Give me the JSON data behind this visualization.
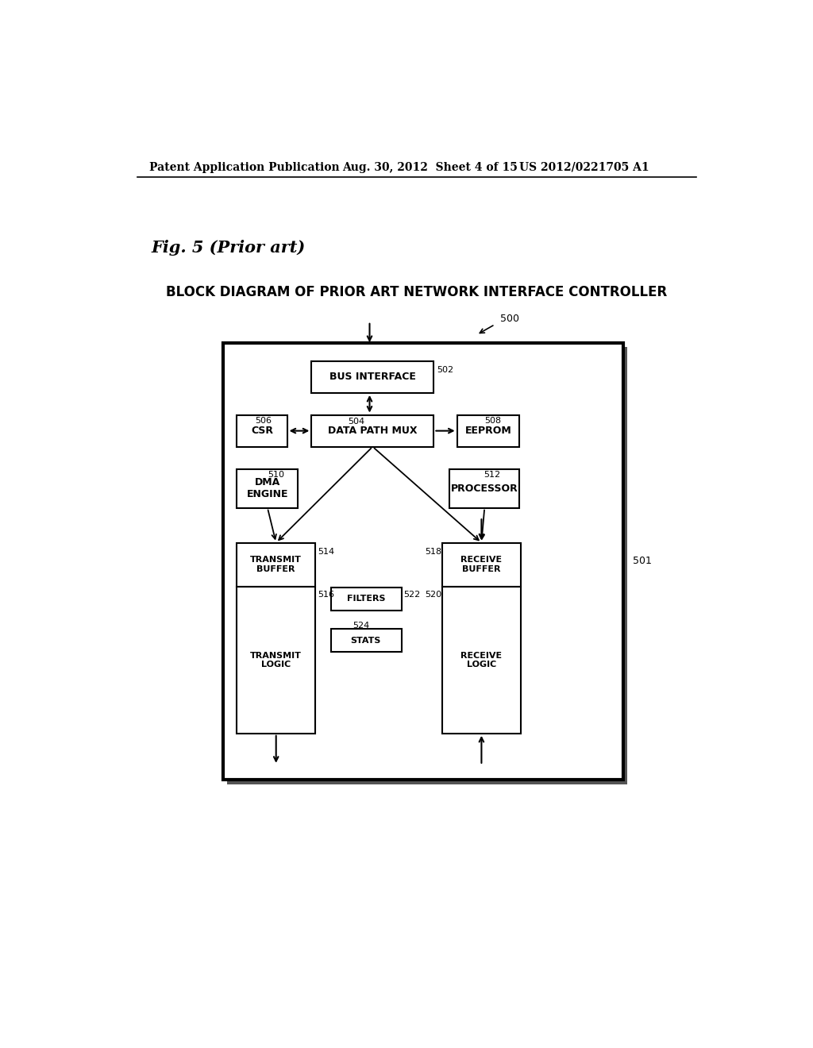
{
  "page_header_left": "Patent Application Publication",
  "page_header_mid": "Aug. 30, 2012  Sheet 4 of 15",
  "page_header_right": "US 2012/0221705 A1",
  "fig_label": "Fig. 5 (Prior art)",
  "diagram_title": "BLOCK DIAGRAM OF PRIOR ART NETWORK INTERFACE CONTROLLER",
  "label_500": "500",
  "label_501": "501",
  "label_502": "502",
  "label_504": "504",
  "label_506": "506",
  "label_508": "508",
  "label_510": "510",
  "label_512": "512",
  "label_514": "514",
  "label_516": "516",
  "label_518": "518",
  "label_520": "520",
  "label_522": "522",
  "label_524": "524",
  "bg_color": "#ffffff",
  "box_color": "#ffffff",
  "box_edge": "#000000",
  "text_color": "#000000"
}
